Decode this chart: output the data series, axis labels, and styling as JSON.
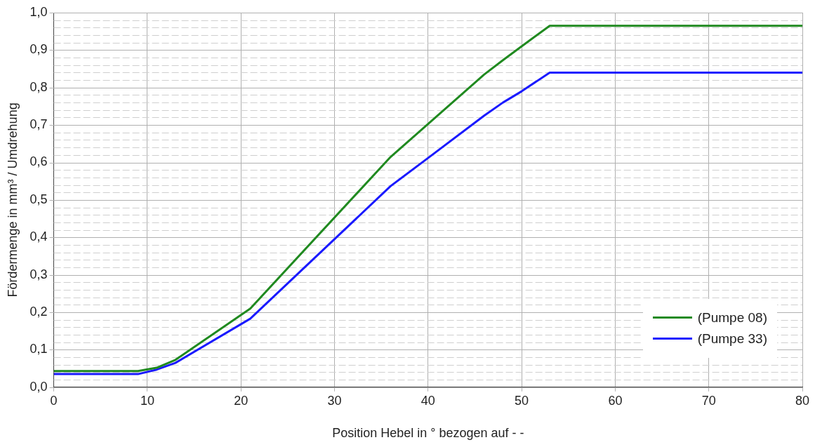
{
  "chart_data": {
    "type": "line",
    "xlabel": "Position Hebel in ° bezogen auf - -",
    "ylabel": "Fördermenge in mm³ / Umdrehung",
    "xlim": [
      0,
      80
    ],
    "xticks": [
      0,
      10,
      20,
      30,
      40,
      50,
      60,
      70,
      80
    ],
    "ylim": [
      0,
      1
    ],
    "yticks": [
      {
        "value": 0,
        "label": "0,0"
      },
      {
        "value": 0.02,
        "label": null
      },
      {
        "value": 0.04,
        "label": null
      },
      {
        "value": 0.06,
        "label": null
      },
      {
        "value": 0.08,
        "label": null
      },
      {
        "value": 0.1,
        "label": "0,1"
      },
      {
        "value": 0.12,
        "label": null
      },
      {
        "value": 0.14,
        "label": null
      },
      {
        "value": 0.16,
        "label": null
      },
      {
        "value": 0.18,
        "label": null
      },
      {
        "value": 0.2,
        "label": "0,2"
      },
      {
        "value": 0.22,
        "label": null
      },
      {
        "value": 0.24,
        "label": null
      },
      {
        "value": 0.26,
        "label": null
      },
      {
        "value": 0.28,
        "label": null
      },
      {
        "value": 0.3,
        "label": "0,3"
      },
      {
        "value": 0.32,
        "label": null
      },
      {
        "value": 0.34,
        "label": null
      },
      {
        "value": 0.36,
        "label": null
      },
      {
        "value": 0.38,
        "label": null
      },
      {
        "value": 0.4,
        "label": "0,4"
      },
      {
        "value": 0.42,
        "label": null
      },
      {
        "value": 0.44,
        "label": null
      },
      {
        "value": 0.46,
        "label": null
      },
      {
        "value": 0.48,
        "label": null
      },
      {
        "value": 0.5,
        "label": "0,5"
      },
      {
        "value": 0.52,
        "label": null
      },
      {
        "value": 0.54,
        "label": null
      },
      {
        "value": 0.56,
        "label": null
      },
      {
        "value": 0.58,
        "label": null
      },
      {
        "value": 0.6,
        "label": "0,6"
      },
      {
        "value": 0.62,
        "label": null
      },
      {
        "value": 0.64,
        "label": null
      },
      {
        "value": 0.66,
        "label": null
      },
      {
        "value": 0.68,
        "label": null
      },
      {
        "value": 0.7,
        "label": "0,7"
      },
      {
        "value": 0.72,
        "label": null
      },
      {
        "value": 0.74,
        "label": null
      },
      {
        "value": 0.76,
        "label": null
      },
      {
        "value": 0.78,
        "label": null
      },
      {
        "value": 0.8,
        "label": "0,8"
      },
      {
        "value": 0.82,
        "label": null
      },
      {
        "value": 0.84,
        "label": null
      },
      {
        "value": 0.86,
        "label": null
      },
      {
        "value": 0.88,
        "label": null
      },
      {
        "value": 0.9,
        "label": "0,9"
      },
      {
        "value": 0.92,
        "label": null
      },
      {
        "value": 0.94,
        "label": null
      },
      {
        "value": 0.96,
        "label": null
      },
      {
        "value": 0.98,
        "label": null
      },
      {
        "value": 1,
        "label": "1,0"
      }
    ],
    "grid": true,
    "legend": "bottom right",
    "marker": "none",
    "line_style": "solid",
    "series": [
      {
        "name": "(Pumpe 08)",
        "color": "#208a20",
        "x": [
          0,
          9,
          11,
          13,
          21,
          36,
          40,
          46,
          48,
          50,
          53,
          80
        ],
        "values": [
          0.043,
          0.043,
          0.052,
          0.073,
          0.21,
          0.615,
          0.703,
          0.835,
          0.873,
          0.91,
          0.965,
          0.965
        ]
      },
      {
        "name": "(Pumpe 33)",
        "color": "#1a1aff",
        "x": [
          0,
          9,
          11,
          13,
          21,
          36,
          40,
          46,
          48,
          50,
          53,
          80
        ],
        "values": [
          0.035,
          0.035,
          0.047,
          0.065,
          0.183,
          0.537,
          0.612,
          0.725,
          0.76,
          0.79,
          0.84,
          0.84
        ]
      }
    ]
  }
}
